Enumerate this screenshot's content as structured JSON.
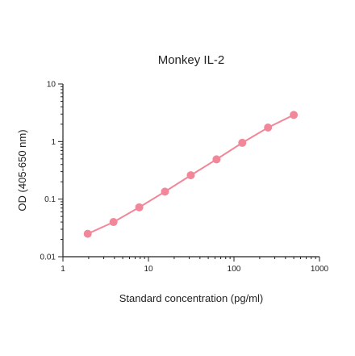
{
  "chart_data": {
    "type": "scatter",
    "title": "Monkey IL-2",
    "xlabel": "Standard concentration (pg/ml)",
    "ylabel": "OD (405-650 nm)",
    "x_scale": "log",
    "y_scale": "log",
    "xlim": [
      1,
      1000
    ],
    "ylim": [
      0.01,
      10
    ],
    "x_ticks": [
      {
        "value": 1,
        "label": "1"
      },
      {
        "value": 10,
        "label": "10"
      },
      {
        "value": 100,
        "label": "100"
      },
      {
        "value": 1000,
        "label": "1000"
      }
    ],
    "y_ticks": [
      {
        "value": 0.01,
        "label": "0.01"
      },
      {
        "value": 0.1,
        "label": "0.1"
      },
      {
        "value": 1,
        "label": "1"
      },
      {
        "value": 10,
        "label": "10"
      }
    ],
    "grid": false,
    "legend": "none",
    "series": [
      {
        "color": "#f2879a",
        "x": [
          1.95,
          3.9,
          7.8,
          15.6,
          31.25,
          62.5,
          125,
          250,
          500
        ],
        "y": [
          0.025,
          0.04,
          0.072,
          0.135,
          0.26,
          0.49,
          0.95,
          1.75,
          2.9
        ]
      }
    ]
  }
}
